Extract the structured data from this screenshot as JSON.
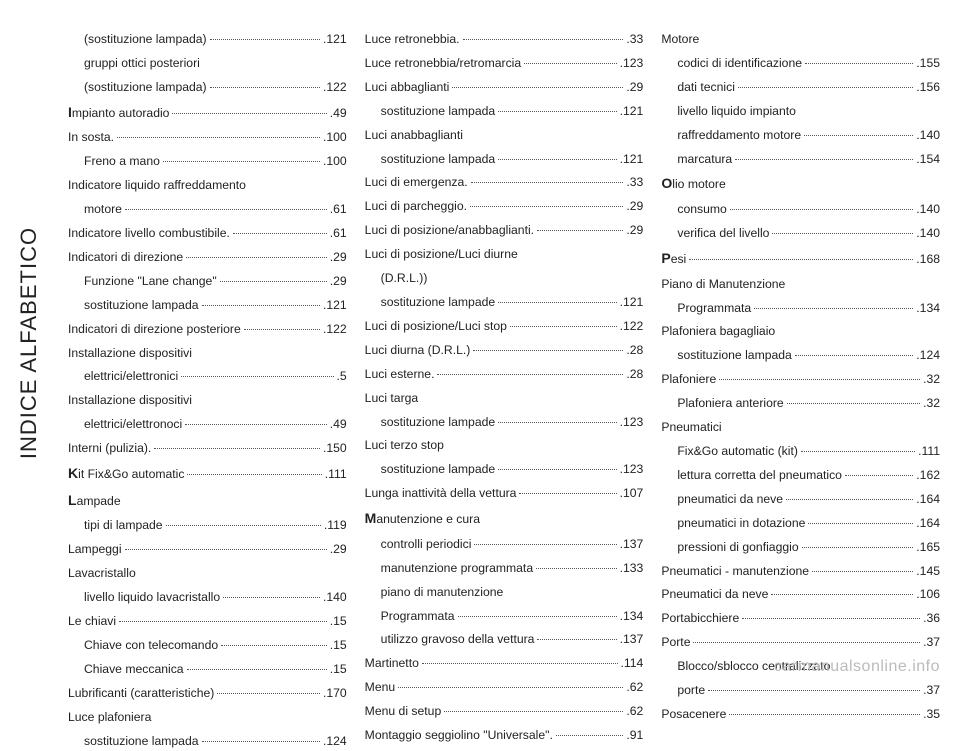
{
  "sideLabel": "INDICE ALFABETICO",
  "watermark": "carmanualsonline.info",
  "colors": {
    "text": "#222222",
    "watermark": "#bbbbbb",
    "background": "#ffffff"
  },
  "columns": [
    [
      {
        "label": "(sostituzione lampada)",
        "page": ".121",
        "sub": true
      },
      {
        "label": "gruppi ottici posteriori",
        "nopage": true,
        "sub": true
      },
      {
        "label": "(sostituzione lampada)",
        "page": ".122",
        "sub": true
      },
      {
        "letter": "I",
        "label": "mpianto autoradio",
        "page": ".49"
      },
      {
        "label": "In sosta.",
        "page": ".100"
      },
      {
        "label": "Freno a mano",
        "page": ".100",
        "sub": true
      },
      {
        "label": "Indicatore liquido raffreddamento",
        "nopage": true
      },
      {
        "label": "motore",
        "page": ".61",
        "sub": true
      },
      {
        "label": "Indicatore livello combustibile.",
        "page": ".61"
      },
      {
        "label": "Indicatori di direzione",
        "page": ".29"
      },
      {
        "label": "Funzione \"Lane change\"",
        "page": ".29",
        "sub": true
      },
      {
        "label": "sostituzione lampada",
        "page": ".121",
        "sub": true
      },
      {
        "label": "Indicatori di direzione posteriore",
        "page": ".122"
      },
      {
        "label": "Installazione dispositivi",
        "nopage": true
      },
      {
        "label": "elettrici/elettronici",
        "page": ".5",
        "sub": true
      },
      {
        "label": "Installazione dispositivi",
        "nopage": true
      },
      {
        "label": "elettrici/elettronoci",
        "page": ".49",
        "sub": true
      },
      {
        "label": "Interni (pulizia).",
        "page": ".150"
      },
      {
        "letter": "K",
        "label": "it Fix&Go automatic",
        "page": ".111"
      },
      {
        "letter": "L",
        "label": "ampade",
        "nopage": true
      },
      {
        "label": "tipi di lampade",
        "page": ".119",
        "sub": true
      },
      {
        "label": "Lampeggi",
        "page": ".29"
      },
      {
        "label": "Lavacristallo",
        "nopage": true
      },
      {
        "label": "livello liquido lavacristallo",
        "page": ".140",
        "sub": true
      },
      {
        "label": "Le chiavi",
        "page": ".15"
      },
      {
        "label": "Chiave con telecomando",
        "page": ".15",
        "sub": true
      },
      {
        "label": "Chiave meccanica",
        "page": ".15",
        "sub": true
      },
      {
        "label": "Lubrificanti (caratteristiche)",
        "page": ".170"
      },
      {
        "label": "Luce plafoniera",
        "nopage": true
      },
      {
        "label": "sostituzione lampada",
        "page": ".124",
        "sub": true
      }
    ],
    [
      {
        "label": "Luce retronebbia.",
        "page": ".33"
      },
      {
        "label": "Luce retronebbia/retromarcia",
        "page": ".123"
      },
      {
        "label": "Luci abbaglianti",
        "page": ".29"
      },
      {
        "label": "sostituzione lampada",
        "page": ".121",
        "sub": true
      },
      {
        "label": "Luci anabbaglianti",
        "nopage": true
      },
      {
        "label": "sostituzione lampada",
        "page": ".121",
        "sub": true
      },
      {
        "label": "Luci di emergenza.",
        "page": ".33"
      },
      {
        "label": "Luci di parcheggio.",
        "page": ".29"
      },
      {
        "label": "Luci di posizione/anabbaglianti.",
        "page": ".29"
      },
      {
        "label": "Luci di posizione/Luci diurne",
        "nopage": true
      },
      {
        "label": "(D.R.L.))",
        "nopage": true,
        "sub": true
      },
      {
        "label": "sostituzione lampade",
        "page": ".121",
        "sub": true
      },
      {
        "label": "Luci di posizione/Luci stop",
        "page": ".122"
      },
      {
        "label": "Luci diurna (D.R.L.)",
        "page": ".28"
      },
      {
        "label": "Luci esterne.",
        "page": ".28"
      },
      {
        "label": "Luci targa",
        "nopage": true
      },
      {
        "label": "sostituzione lampade",
        "page": ".123",
        "sub": true
      },
      {
        "label": "Luci terzo stop",
        "nopage": true
      },
      {
        "label": "sostituzione lampade",
        "page": ".123",
        "sub": true
      },
      {
        "label": "Lunga inattività della vettura",
        "page": ".107"
      },
      {
        "letter": "M",
        "label": "anutenzione e cura",
        "nopage": true
      },
      {
        "label": "controlli periodici",
        "page": ".137",
        "sub": true
      },
      {
        "label": "manutenzione programmata",
        "page": ".133",
        "sub": true
      },
      {
        "label": "piano di manutenzione",
        "nopage": true,
        "sub": true
      },
      {
        "label": "Programmata",
        "page": ".134",
        "sub": true
      },
      {
        "label": "utilizzo gravoso della vettura",
        "page": ".137",
        "sub": true
      },
      {
        "label": "Martinetto",
        "page": ".114"
      },
      {
        "label": "Menu",
        "page": ".62"
      },
      {
        "label": "Menu di setup",
        "page": ".62"
      },
      {
        "label": "Montaggio seggiolino \"Universale\".",
        "page": ".91"
      }
    ],
    [
      {
        "label": "Motore",
        "nopage": true
      },
      {
        "label": "codici di identificazione",
        "page": ".155",
        "sub": true
      },
      {
        "label": "dati tecnici",
        "page": ".156",
        "sub": true
      },
      {
        "label": "livello liquido impianto",
        "nopage": true,
        "sub": true
      },
      {
        "label": "raffreddamento motore",
        "page": ".140",
        "sub": true
      },
      {
        "label": "marcatura",
        "page": ".154",
        "sub": true
      },
      {
        "letter": "O",
        "label": "lio motore",
        "nopage": true
      },
      {
        "label": "consumo",
        "page": ".140",
        "sub": true
      },
      {
        "label": "verifica del livello",
        "page": ".140",
        "sub": true
      },
      {
        "letter": "P",
        "label": "esi",
        "page": ".168"
      },
      {
        "label": "Piano di Manutenzione",
        "nopage": true
      },
      {
        "label": "Programmata",
        "page": ".134",
        "sub": true
      },
      {
        "label": "Plafoniera bagagliaio",
        "nopage": true
      },
      {
        "label": "sostituzione lampada",
        "page": ".124",
        "sub": true
      },
      {
        "label": "Plafoniere",
        "page": ".32"
      },
      {
        "label": "Plafoniera anteriore",
        "page": ".32",
        "sub": true
      },
      {
        "label": "Pneumatici",
        "nopage": true
      },
      {
        "label": "Fix&Go automatic (kit)",
        "page": ".111",
        "sub": true
      },
      {
        "label": "lettura corretta del pneumatico",
        "page": ".162",
        "sub": true
      },
      {
        "label": "pneumatici da neve",
        "page": ".164",
        "sub": true
      },
      {
        "label": "pneumatici in dotazione",
        "page": ".164",
        "sub": true
      },
      {
        "label": "pressioni di gonfiaggio",
        "page": ".165",
        "sub": true
      },
      {
        "label": "Pneumatici - manutenzione",
        "page": ".145"
      },
      {
        "label": "Pneumatici da neve",
        "page": ".106"
      },
      {
        "label": "Portabicchiere",
        "page": ".36"
      },
      {
        "label": "Porte",
        "page": ".37"
      },
      {
        "label": "Blocco/sblocco centralizzato",
        "nopage": true,
        "sub": true
      },
      {
        "label": "porte",
        "page": ".37",
        "sub": true
      },
      {
        "label": "Posacenere",
        "page": ".35"
      }
    ]
  ]
}
